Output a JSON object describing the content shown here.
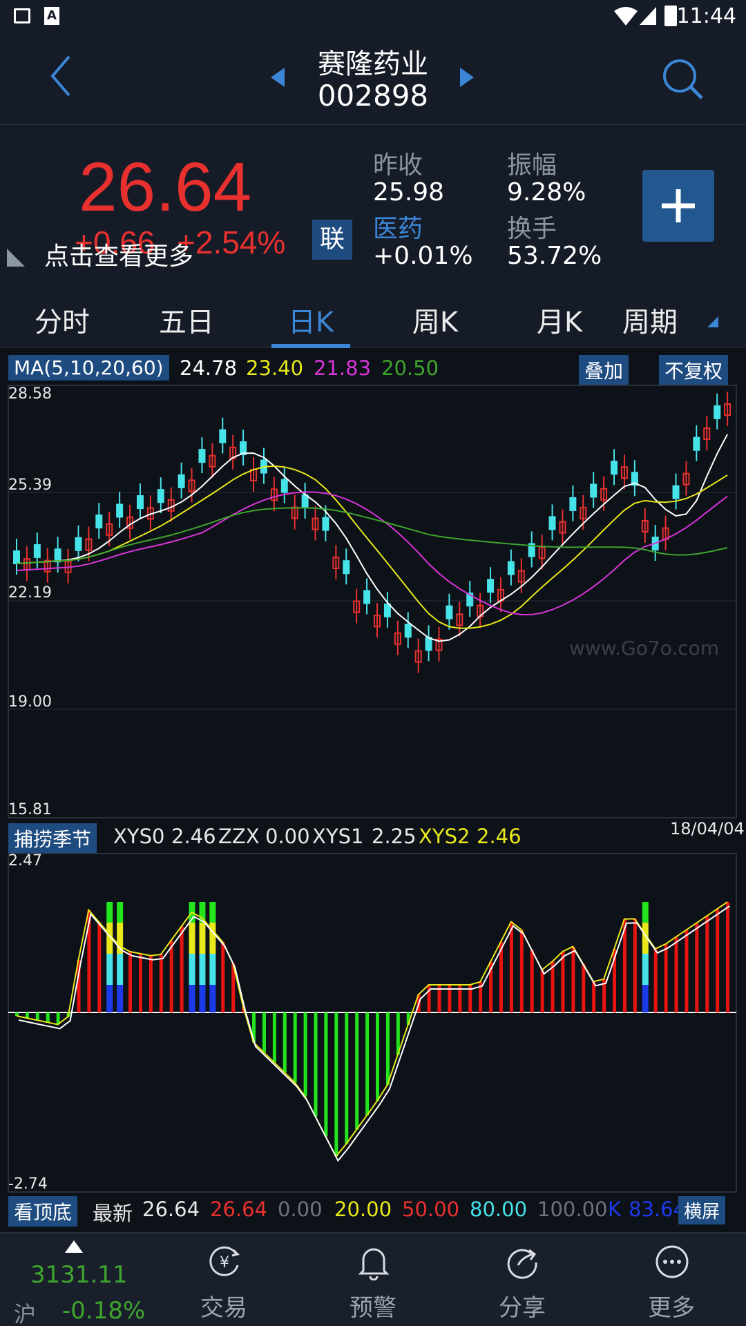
{
  "status": {
    "time": "11:44"
  },
  "header": {
    "name": "赛隆药业",
    "code": "002898"
  },
  "quote": {
    "price": "26.64",
    "change": "+0.66",
    "change_pct": "+2.54%",
    "more": "点击查看更多",
    "link_badge": "联",
    "prev_close_label": "昨收",
    "prev_close": "25.98",
    "amplitude_label": "振幅",
    "amplitude": "9.28%",
    "sector_label": "医药",
    "sector_change": "+0.01%",
    "turnover_label": "换手",
    "turnover": "53.72%"
  },
  "tabs": [
    {
      "label": "分时"
    },
    {
      "label": "五日"
    },
    {
      "label": "日K"
    },
    {
      "label": "周K"
    },
    {
      "label": "月K"
    },
    {
      "label": "周期"
    }
  ],
  "active_tab": "日K",
  "ma": {
    "label": "MA(5,10,20,60)",
    "v5": "24.78",
    "v10": "23.40",
    "v20": "21.83",
    "v60": "20.50",
    "overlay": "叠加",
    "adjust": "不复权"
  },
  "price_axis": [
    "28.58",
    "25.39",
    "22.19",
    "19.00",
    "15.81"
  ],
  "watermark": "www.Go7o.com",
  "date": "18/04/04",
  "ind1": {
    "tag": "捕捞季节",
    "xys0_label": "XYS0",
    "xys0": "2.46",
    "zzx_label": "ZZX",
    "zzx": "0.00",
    "xys1_label": "XYS1",
    "xys1": "2.25",
    "xys2_label": "XYS2",
    "xys2": "2.46",
    "top": "2.47",
    "bottom": "-2.74"
  },
  "ind2": {
    "tag": "看顶底",
    "latest_label": "最新",
    "latest": "26.64",
    "v1": "26.64",
    "v2": "0.00",
    "v3": "20.00",
    "v4": "50.00",
    "v5": "80.00",
    "v6": "100.00",
    "k_label": "K",
    "k": "83.64",
    "landscape": "横屏"
  },
  "nav": {
    "index_value": "3131.11",
    "index_name": "沪",
    "index_change": "-0.18%",
    "trade": "交易",
    "alert": "预警",
    "share": "分享",
    "more": "更多"
  },
  "colors": {
    "up": "#e8312f",
    "down": "#46e3e9",
    "ma5": "#ffffff",
    "ma10": "#e8e81a",
    "ma20": "#d835d8",
    "ma60": "#3ea52e",
    "accent": "#2f7bd6"
  }
}
